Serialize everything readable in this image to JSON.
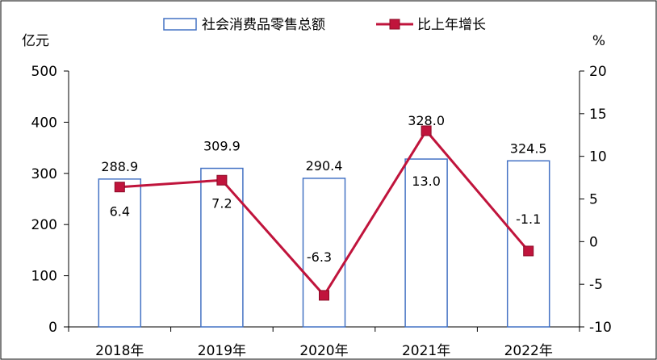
{
  "chart_data": {
    "type": "bar",
    "categories": [
      "2018年",
      "2019年",
      "2020年",
      "2021年",
      "2022年"
    ],
    "series": [
      {
        "name": "社会消费品零售总额",
        "type": "bar",
        "axis": "left",
        "values": [
          288.9,
          309.9,
          290.4,
          328.0,
          324.5
        ],
        "value_labels": [
          "288.9",
          "309.9",
          "290.4",
          "328.0",
          "324.5"
        ],
        "color": "#4472C4"
      },
      {
        "name": "比上年增长",
        "type": "line",
        "axis": "right",
        "values": [
          6.4,
          7.2,
          -6.3,
          13.0,
          -1.1
        ],
        "value_labels": [
          "6.4",
          "7.2",
          "-6.3",
          "13.0",
          "-1.1"
        ],
        "color": "#C0143C"
      }
    ],
    "y_left": {
      "label": "亿元",
      "lim": [
        0,
        500
      ],
      "ticks": [
        "0",
        "100",
        "200",
        "300",
        "400",
        "500"
      ],
      "tick_values": [
        0,
        100,
        200,
        300,
        400,
        500
      ]
    },
    "y_right": {
      "label": "%",
      "lim": [
        -10,
        20
      ],
      "ticks": [
        "-10",
        "-5",
        "0",
        "5",
        "10",
        "15",
        "20"
      ],
      "tick_values": [
        -10,
        -5,
        0,
        5,
        10,
        15,
        20
      ]
    },
    "legend_position": "top-center",
    "grid": false
  }
}
